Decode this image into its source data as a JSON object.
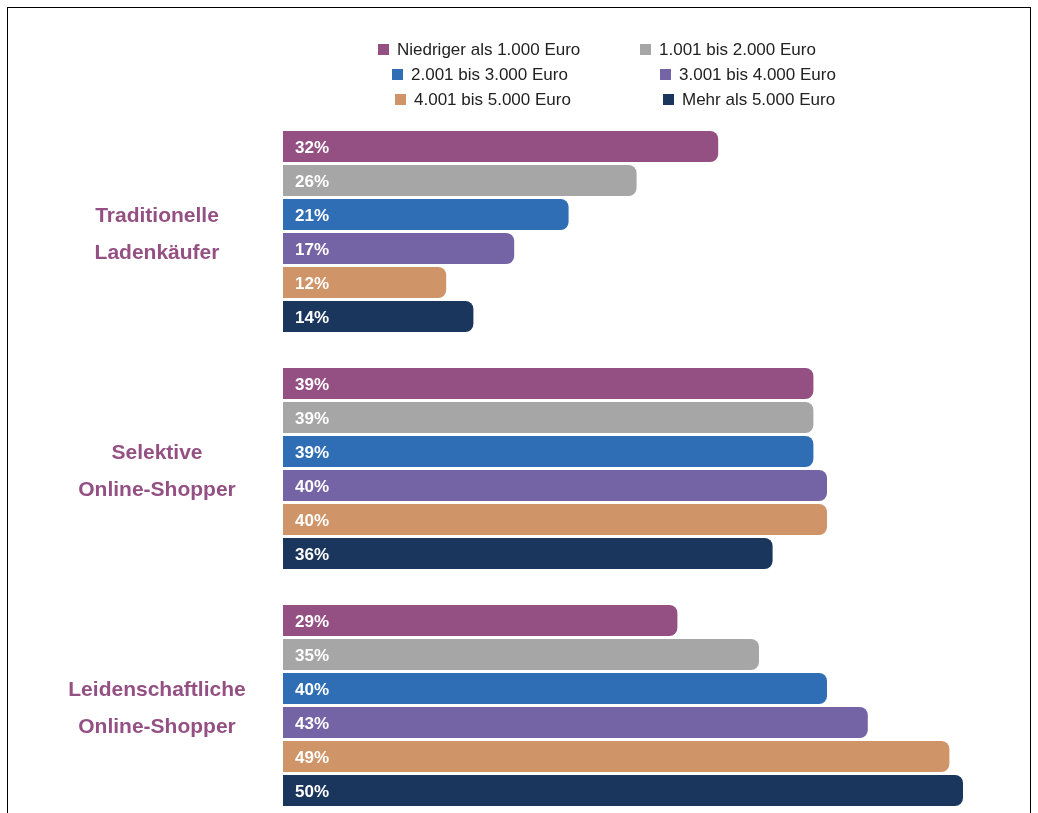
{
  "chart_data": {
    "type": "bar",
    "orientation": "horizontal",
    "categories": [
      "Traditionelle Ladenkäufer",
      "Selektive Online-Shopper",
      "Leidenschaftliche Online-Shopper"
    ],
    "series": [
      {
        "name": "Niedriger als 1.000 Euro",
        "color": "#944f83",
        "values": [
          32,
          39,
          29
        ],
        "value_labels": [
          "32%",
          "39%",
          "29%"
        ]
      },
      {
        "name": "1.001 bis 2.000 Euro",
        "color": "#a6a6a6",
        "values": [
          26,
          39,
          35
        ],
        "value_labels": [
          "26%",
          "39%",
          "35%"
        ]
      },
      {
        "name": "2.001 bis 3.000 Euro",
        "color": "#2f6db5",
        "values": [
          21,
          39,
          40
        ],
        "value_labels": [
          "21%",
          "39%",
          "40%"
        ]
      },
      {
        "name": "3.001 bis 4.000 Euro",
        "color": "#7564a5",
        "values": [
          17,
          40,
          43
        ],
        "value_labels": [
          "17%",
          "40%",
          "43%"
        ]
      },
      {
        "name": "4.001 bis 5.000 Euro",
        "color": "#cf9467",
        "values": [
          12,
          40,
          49
        ],
        "value_labels": [
          "12%",
          "40%",
          "49%"
        ]
      },
      {
        "name": "Mehr als 5.000 Euro",
        "color": "#1b365d",
        "values": [
          14,
          36,
          50
        ],
        "value_labels": [
          "14%",
          "36%",
          "50%"
        ]
      }
    ],
    "legend": "top",
    "grid": false,
    "tick_labels": "y"
  }
}
